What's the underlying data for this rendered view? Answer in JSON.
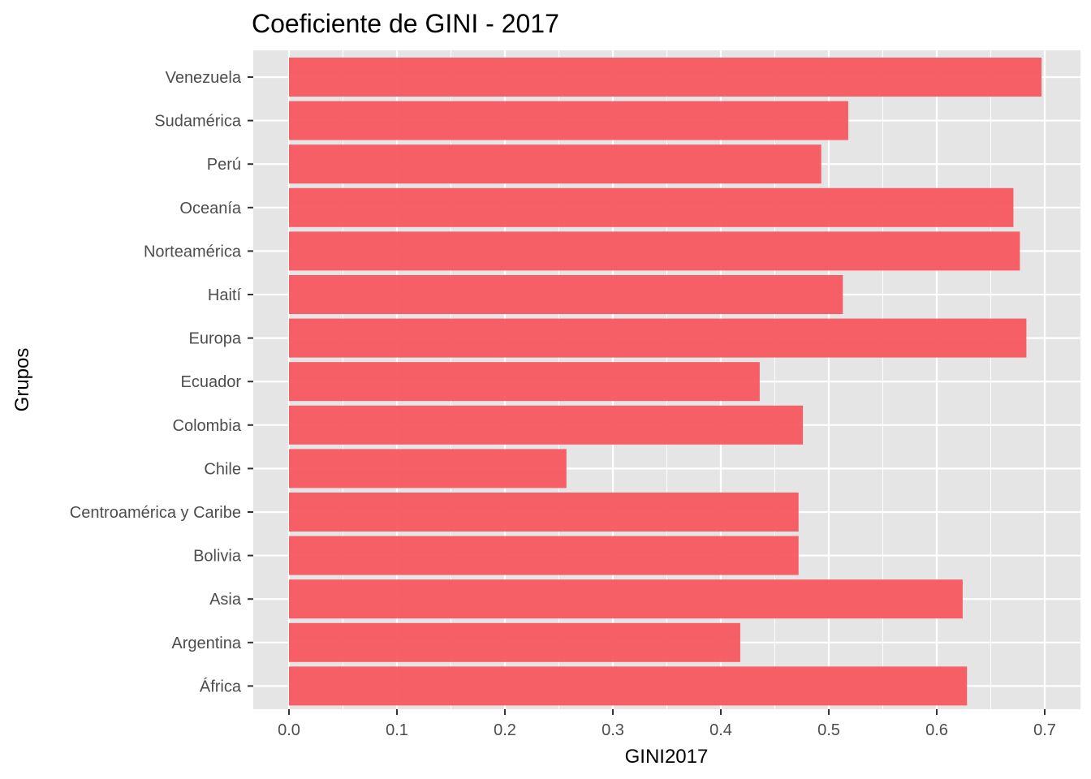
{
  "chart_data": {
    "type": "bar",
    "orientation": "horizontal",
    "title": "Coeficiente de GINI - 2017",
    "xlabel": "GINI2017",
    "ylabel": "Grupos",
    "xlim": [
      0,
      0.7
    ],
    "x_ticks": [
      "0.0",
      "0.1",
      "0.2",
      "0.3",
      "0.4",
      "0.5",
      "0.6",
      "0.7"
    ],
    "x_tick_values": [
      0,
      0.1,
      0.2,
      0.3,
      0.4,
      0.5,
      0.6,
      0.7
    ],
    "grid": true,
    "legend": "none",
    "bar_color": "#F8575F",
    "panel_background": "#E5E5E5",
    "categories": [
      "Venezuela",
      "Sudamérica",
      "Perú",
      "Oceanía",
      "Norteamérica",
      "Haití",
      "Europa",
      "Ecuador",
      "Colombia",
      "Chile",
      "Centroamérica y Caribe",
      "Bolivia",
      "Asia",
      "Argentina",
      "África"
    ],
    "values": [
      0.697,
      0.518,
      0.493,
      0.671,
      0.677,
      0.513,
      0.683,
      0.436,
      0.476,
      0.257,
      0.472,
      0.472,
      0.624,
      0.418,
      0.628
    ]
  }
}
